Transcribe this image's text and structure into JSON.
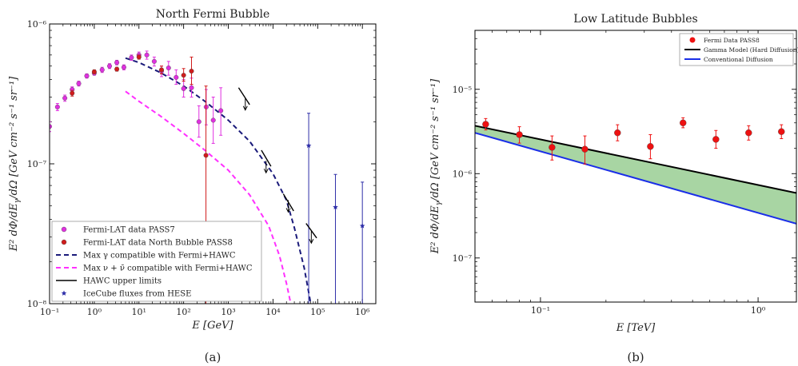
{
  "chart_data": [
    {
      "type": "scatter",
      "panel_caption": "(a)",
      "title": "North Fermi Bubble",
      "xlabel": "E [GeV]",
      "ylabel": "E² dΦ/dE_γ/dΩ [GeV cm⁻² s⁻¹ sr⁻¹]",
      "x_scale": "log",
      "y_scale": "log",
      "xlim": [
        0.1,
        2000000
      ],
      "ylim": [
        1e-08,
        1e-06
      ],
      "x_ticks": [
        {
          "v": 0.1,
          "label": "10⁻¹"
        },
        {
          "v": 1,
          "label": "10⁰"
        },
        {
          "v": 10,
          "label": "10¹"
        },
        {
          "v": 100,
          "label": "10²"
        },
        {
          "v": 1000,
          "label": "10³"
        },
        {
          "v": 10000,
          "label": "10⁴"
        },
        {
          "v": 100000,
          "label": "10⁵"
        },
        {
          "v": 1000000,
          "label": "10⁶"
        }
      ],
      "y_ticks": [
        {
          "v": 1e-08,
          "label": "10⁻⁸"
        },
        {
          "v": 1e-07,
          "label": "10⁻⁷"
        },
        {
          "v": 1e-06,
          "label": "10⁻⁶"
        }
      ],
      "legend_position": "lower-left",
      "colors": {
        "pass7": "#e030e0",
        "pass8": "#d01c1c",
        "gamma": "#1a1a7a",
        "nu": "#ff30ff",
        "hawc": "#000000",
        "icecube": "#2e2ea8"
      },
      "series": [
        {
          "name": "Fermi-LAT data PASS7",
          "kind": "points",
          "color": "#e030e0",
          "points": [
            {
              "x": 0.1,
              "y": 1.85e-07,
              "lo": 1.7e-07,
              "hi": 2e-07
            },
            {
              "x": 0.15,
              "y": 2.55e-07,
              "lo": 2.4e-07,
              "hi": 2.7e-07
            },
            {
              "x": 0.22,
              "y": 2.95e-07,
              "lo": 2.8e-07,
              "hi": 3.1e-07
            },
            {
              "x": 0.32,
              "y": 3.4e-07,
              "lo": 3.25e-07,
              "hi": 3.55e-07
            },
            {
              "x": 0.45,
              "y": 3.75e-07,
              "lo": 3.6e-07,
              "hi": 3.9e-07
            },
            {
              "x": 0.68,
              "y": 4.25e-07,
              "lo": 4.1e-07,
              "hi": 4.4e-07
            },
            {
              "x": 1.0,
              "y": 4.45e-07,
              "lo": 4.3e-07,
              "hi": 4.6e-07
            },
            {
              "x": 1.5,
              "y": 4.7e-07,
              "lo": 4.5e-07,
              "hi": 4.9e-07
            },
            {
              "x": 2.2,
              "y": 5e-07,
              "lo": 4.8e-07,
              "hi": 5.2e-07
            },
            {
              "x": 3.2,
              "y": 5.3e-07,
              "lo": 5.1e-07,
              "hi": 5.5e-07
            },
            {
              "x": 4.6,
              "y": 4.9e-07,
              "lo": 4.7e-07,
              "hi": 5.1e-07
            },
            {
              "x": 6.8,
              "y": 5.75e-07,
              "lo": 5.5e-07,
              "hi": 6e-07
            },
            {
              "x": 10,
              "y": 6e-07,
              "lo": 5.7e-07,
              "hi": 6.3e-07
            },
            {
              "x": 15,
              "y": 6e-07,
              "lo": 5.6e-07,
              "hi": 6.4e-07
            },
            {
              "x": 22,
              "y": 5.4e-07,
              "lo": 5e-07,
              "hi": 5.8e-07
            },
            {
              "x": 32,
              "y": 4.6e-07,
              "lo": 4.2e-07,
              "hi": 5e-07
            },
            {
              "x": 46,
              "y": 4.85e-07,
              "lo": 4.3e-07,
              "hi": 5.4e-07
            },
            {
              "x": 68,
              "y": 4.15e-07,
              "lo": 3.7e-07,
              "hi": 4.7e-07
            },
            {
              "x": 100,
              "y": 3.45e-07,
              "lo": 3e-07,
              "hi": 4e-07
            },
            {
              "x": 150,
              "y": 3.5e-07,
              "lo": 3e-07,
              "hi": 4.1e-07
            },
            {
              "x": 220,
              "y": 2e-07,
              "lo": 1.55e-07,
              "hi": 2.6e-07
            },
            {
              "x": 320,
              "y": 2.55e-07,
              "lo": 1.9e-07,
              "hi": 3.4e-07
            },
            {
              "x": 460,
              "y": 2.05e-07,
              "lo": 1.4e-07,
              "hi": 3e-07
            },
            {
              "x": 680,
              "y": 2.4e-07,
              "lo": 1.6e-07,
              "hi": 3.5e-07
            }
          ]
        },
        {
          "name": "Fermi-LAT data North Bubble PASS8",
          "kind": "points",
          "color": "#d01c1c",
          "points": [
            {
              "x": 0.32,
              "y": 3.2e-07,
              "lo": 3.05e-07,
              "hi": 3.35e-07
            },
            {
              "x": 1.0,
              "y": 4.55e-07,
              "lo": 4.4e-07,
              "hi": 4.7e-07
            },
            {
              "x": 3.2,
              "y": 4.75e-07,
              "lo": 4.6e-07,
              "hi": 4.9e-07
            },
            {
              "x": 10,
              "y": 5.8e-07,
              "lo": 5.6e-07,
              "hi": 6e-07
            },
            {
              "x": 32,
              "y": 4.7e-07,
              "lo": 4.4e-07,
              "hi": 5e-07
            },
            {
              "x": 100,
              "y": 4.3e-07,
              "lo": 3.9e-07,
              "hi": 4.8e-07
            },
            {
              "x": 150,
              "y": 4.6e-07,
              "lo": 3.7e-07,
              "hi": 5.8e-07
            },
            {
              "x": 316,
              "y": 1.15e-07,
              "lo": 1e-08,
              "hi": 3.6e-07
            }
          ]
        },
        {
          "name": "Max γ compatible with Fermi+HAWC",
          "kind": "line",
          "dash": "6,4",
          "color": "#1a1a7a",
          "x": [
            5,
            10,
            30,
            100,
            300,
            1000,
            3000,
            10000,
            20000,
            30000,
            50000,
            70000
          ],
          "y": [
            5.7e-07,
            5.3e-07,
            4.5e-07,
            3.6e-07,
            2.8e-07,
            2.05e-07,
            1.45e-07,
            8.5e-08,
            5.5e-08,
            3.5e-08,
            1.8e-08,
            1e-08
          ]
        },
        {
          "name": "Max ν + ν̄ compatible with Fermi+HAWC",
          "kind": "line",
          "dash": "6,4",
          "color": "#ff30ff",
          "x": [
            5,
            10,
            30,
            100,
            300,
            1000,
            3000,
            8000,
            14000,
            20000,
            25000
          ],
          "y": [
            3.3e-07,
            2.8e-07,
            2.2e-07,
            1.65e-07,
            1.25e-07,
            9e-08,
            6e-08,
            3.6e-08,
            2.2e-08,
            1.4e-08,
            1e-08
          ]
        },
        {
          "name": "HAWC upper limits",
          "kind": "upper_limits",
          "color": "#000000",
          "segments": [
            {
              "x0": 1700,
              "y0": 3.5e-07,
              "x1": 3000,
              "y1": 2.65e-07,
              "xa": 2400,
              "ya": 2.95e-07
            },
            {
              "x0": 5500,
              "y0": 1.25e-07,
              "x1": 9000,
              "y1": 9.6e-08,
              "xa": 7000,
              "ya": 1.05e-07
            },
            {
              "x0": 17000,
              "y0": 6.1e-08,
              "x1": 29000,
              "y1": 4.6e-08,
              "xa": 22000,
              "ya": 5.5e-08
            },
            {
              "x0": 55000,
              "y0": 3.75e-08,
              "x1": 95000,
              "y1": 2.95e-08,
              "xa": 72000,
              "ya": 3.3e-08
            }
          ]
        },
        {
          "name": "IceCube fluxes from HESE",
          "kind": "points",
          "marker": "star",
          "color": "#2e2ea8",
          "points": [
            {
              "x": 63000,
              "y": 1.35e-07,
              "lo": 1e-08,
              "hi": 2.3e-07
            },
            {
              "x": 250000,
              "y": 4.9e-08,
              "lo": 1e-08,
              "hi": 8.4e-08
            },
            {
              "x": 1000000,
              "y": 3.6e-08,
              "lo": 1e-08,
              "hi": 7.4e-08
            }
          ]
        }
      ]
    },
    {
      "type": "scatter",
      "panel_caption": "(b)",
      "title": "Low Latitude Bubbles",
      "xlabel": "E [TeV]",
      "ylabel": "E² dΦ/dE_γ/dΩ [GeV cm⁻² s⁻¹ sr⁻¹]",
      "x_scale": "log",
      "y_scale": "log",
      "xlim": [
        0.05,
        1.5
      ],
      "ylim": [
        3e-08,
        5e-05
      ],
      "x_ticks": [
        {
          "v": 0.1,
          "label": "10⁻¹"
        },
        {
          "v": 1,
          "label": "10⁰"
        }
      ],
      "y_ticks": [
        {
          "v": 1e-07,
          "label": "10⁻⁷"
        },
        {
          "v": 1e-06,
          "label": "10⁻⁶"
        },
        {
          "v": 1e-05,
          "label": "10⁻⁵"
        }
      ],
      "legend_position": "top-right",
      "band_fill": "#a8d5a3",
      "series": [
        {
          "name": "Fermi Data PASS8",
          "kind": "points",
          "color": "#ee1111",
          "points": [
            {
              "x": 0.056,
              "y": 3.85e-06,
              "lo": 3.3e-06,
              "hi": 4.5e-06
            },
            {
              "x": 0.08,
              "y": 2.9e-06,
              "lo": 2.3e-06,
              "hi": 3.6e-06
            },
            {
              "x": 0.113,
              "y": 2.05e-06,
              "lo": 1.45e-06,
              "hi": 2.8e-06
            },
            {
              "x": 0.16,
              "y": 1.95e-06,
              "lo": 1.3e-06,
              "hi": 2.8e-06
            },
            {
              "x": 0.226,
              "y": 3.05e-06,
              "lo": 2.45e-06,
              "hi": 3.8e-06
            },
            {
              "x": 0.32,
              "y": 2.1e-06,
              "lo": 1.5e-06,
              "hi": 2.9e-06
            },
            {
              "x": 0.452,
              "y": 4e-06,
              "lo": 3.5e-06,
              "hi": 4.6e-06
            },
            {
              "x": 0.64,
              "y": 2.55e-06,
              "lo": 2e-06,
              "hi": 3.25e-06
            },
            {
              "x": 0.905,
              "y": 3.05e-06,
              "lo": 2.5e-06,
              "hi": 3.7e-06
            },
            {
              "x": 1.28,
              "y": 3.15e-06,
              "lo": 2.6e-06,
              "hi": 3.8e-06
            }
          ]
        },
        {
          "name": "Gamma Model (Hard Diffusion)",
          "kind": "line",
          "color": "#000000",
          "x": [
            0.05,
            1.5
          ],
          "y": [
            3.7e-06,
            5.9e-07
          ]
        },
        {
          "name": "Conventional Diffusion",
          "kind": "line",
          "color": "#1a2ee8",
          "x": [
            0.05,
            1.5
          ],
          "y": [
            3.05e-06,
            2.55e-07
          ]
        }
      ]
    }
  ]
}
